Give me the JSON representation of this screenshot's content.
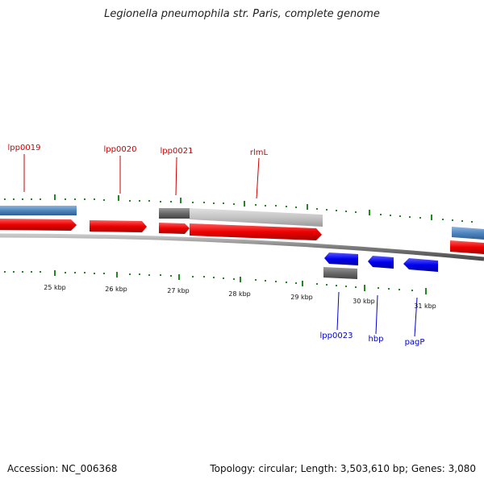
{
  "title": "Legionella pneumophila str. Paris, complete genome",
  "footer": {
    "accession": "Accession: NC_006368",
    "summary": "Topology: circular; Length: 3,503,610 bp; Genes: 3,080"
  },
  "ruler": {
    "tick_labels": [
      "25 kbp",
      "26 kbp",
      "27 kbp",
      "28 kbp",
      "29 kbp",
      "30 kbp",
      "31 kbp"
    ]
  },
  "genes_forward": [
    {
      "label": "lpp0019",
      "color": "#cc0000"
    },
    {
      "label": "lpp0020",
      "color": "#cc0000"
    },
    {
      "label": "lpp0021",
      "color": "#cc0000"
    },
    {
      "label": "rlmL",
      "color": "#cc0000"
    }
  ],
  "genes_reverse": [
    {
      "label": "lpp0023",
      "color": "#0000cc"
    },
    {
      "label": "hbp",
      "color": "#0000cc"
    },
    {
      "label": "pagP",
      "color": "#0000cc"
    }
  ],
  "colors": {
    "backbone": "#808080",
    "cds_forward": "#ff0000",
    "cds_reverse": "#0000ff",
    "gene_bar_blue": "#4f86c0",
    "gene_bar_gray": "#7a7a7a",
    "gene_bar_lightgray": "#c8c8c8",
    "tick": "#228822"
  }
}
